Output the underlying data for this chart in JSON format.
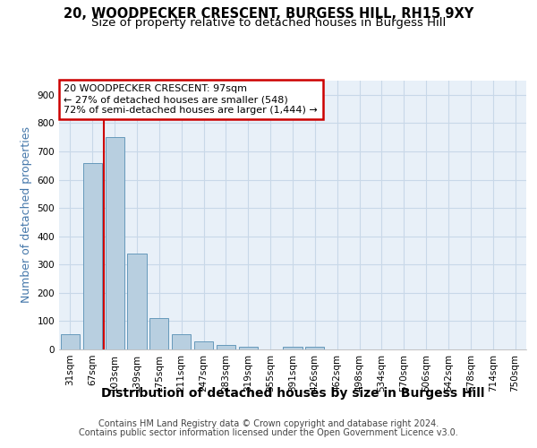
{
  "title": "20, WOODPECKER CRESCENT, BURGESS HILL, RH15 9XY",
  "subtitle": "Size of property relative to detached houses in Burgess Hill",
  "xlabel": "Distribution of detached houses by size in Burgess Hill",
  "ylabel": "Number of detached properties",
  "footer_line1": "Contains HM Land Registry data © Crown copyright and database right 2024.",
  "footer_line2": "Contains public sector information licensed under the Open Government Licence v3.0.",
  "bin_labels": [
    "31sqm",
    "67sqm",
    "103sqm",
    "139sqm",
    "175sqm",
    "211sqm",
    "247sqm",
    "283sqm",
    "319sqm",
    "355sqm",
    "391sqm",
    "426sqm",
    "462sqm",
    "498sqm",
    "534sqm",
    "570sqm",
    "606sqm",
    "642sqm",
    "678sqm",
    "714sqm",
    "750sqm"
  ],
  "bar_values": [
    55,
    660,
    750,
    340,
    110,
    53,
    28,
    15,
    11,
    0,
    8,
    9,
    0,
    0,
    0,
    0,
    0,
    0,
    0,
    0,
    0
  ],
  "bar_color": "#b8cfe0",
  "bar_edge_color": "#6699bb",
  "red_line_x": 1.5,
  "red_line_color": "#cc0000",
  "annotation_text": "20 WOODPECKER CRESCENT: 97sqm\n← 27% of detached houses are smaller (548)\n72% of semi-detached houses are larger (1,444) →",
  "annotation_box_color": "#ffffff",
  "annotation_box_edge_color": "#cc0000",
  "ylim": [
    0,
    950
  ],
  "yticks": [
    0,
    100,
    200,
    300,
    400,
    500,
    600,
    700,
    800,
    900
  ],
  "grid_color": "#c8d8e8",
  "bg_color": "#e8f0f8",
  "title_fontsize": 10.5,
  "subtitle_fontsize": 9.5,
  "xlabel_fontsize": 10,
  "ylabel_fontsize": 9,
  "tick_fontsize": 7.5,
  "footer_fontsize": 7
}
